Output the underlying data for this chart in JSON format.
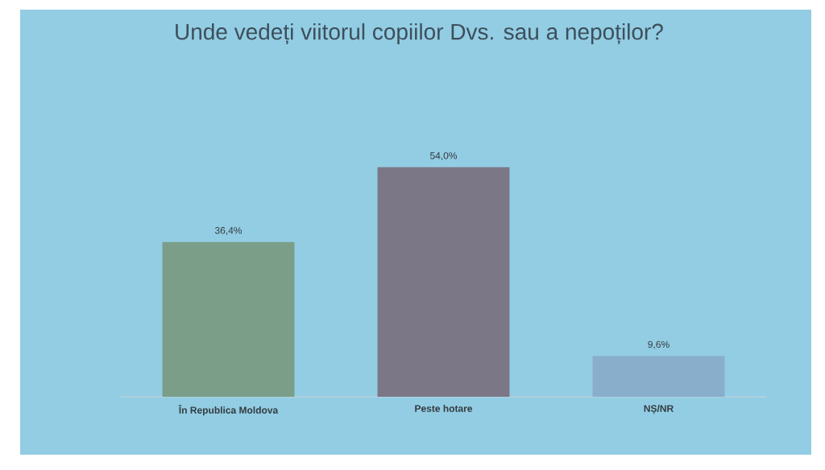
{
  "chart_data": {
    "type": "bar",
    "title": "Unde vedeți viitorul copiilor Dvs. sau a nepoților?",
    "categories": [
      "În Republica Moldova",
      "Peste hotare",
      "NȘ/NR"
    ],
    "values": [
      36.4,
      54.0,
      9.6
    ],
    "colors": [
      "#7a9e88",
      "#7b7787",
      "#88aecb"
    ],
    "value_labels": [
      "36,4%",
      "54,0%",
      "9,6%"
    ]
  }
}
